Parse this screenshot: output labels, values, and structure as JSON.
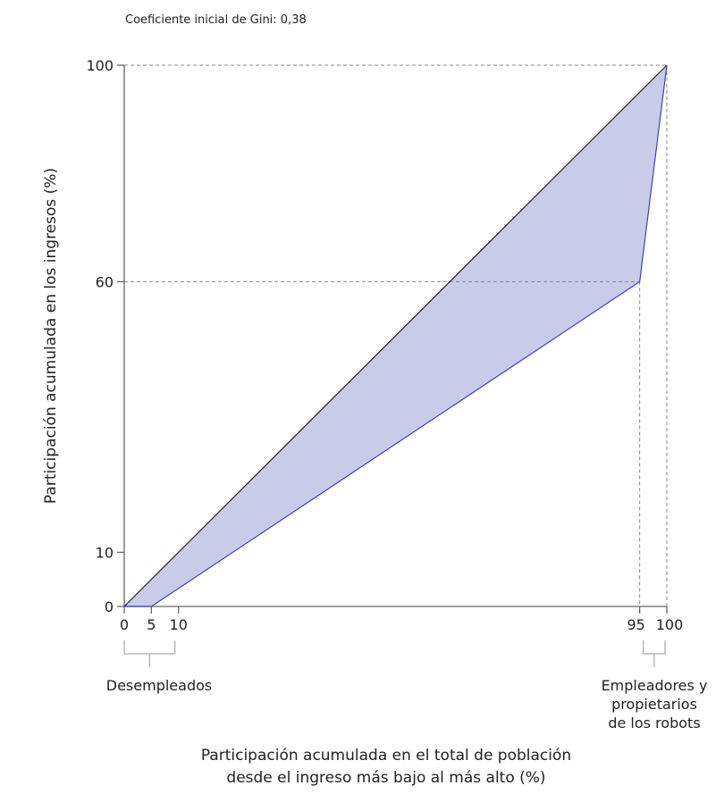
{
  "chart_data": {
    "type": "area",
    "title": "Coeficiente inicial de Gini: 0,38",
    "xlabel": [
      "Participación acumulada en el total de población",
      "desde el ingreso más bajo al más alto (%)"
    ],
    "ylabel": "Participación acumulada en los ingresos (%)",
    "xlim": [
      0,
      100
    ],
    "ylim": [
      0,
      100
    ],
    "x_ticks": [
      0,
      5,
      10,
      95,
      100
    ],
    "y_ticks": [
      0,
      10,
      60,
      100
    ],
    "grid": false,
    "series": [
      {
        "role": "equality-line",
        "x": [
          0,
          100
        ],
        "y": [
          0,
          100
        ],
        "color": "#222222"
      },
      {
        "role": "lorenz-curve",
        "x": [
          0,
          5,
          95,
          100
        ],
        "y": [
          0,
          0,
          60,
          100
        ],
        "color": "#3a44b8",
        "fill": "#c9cce9"
      }
    ],
    "reference_lines": [
      {
        "orientation": "horizontal",
        "value": 100
      },
      {
        "orientation": "horizontal",
        "value": 60
      },
      {
        "orientation": "vertical",
        "value": 95
      },
      {
        "orientation": "vertical",
        "value": 100
      }
    ],
    "annotations": [
      {
        "text": [
          "Desempleados"
        ],
        "range": [
          0,
          10
        ]
      },
      {
        "text": [
          "Empleadores y",
          "propietarios",
          "de los robots"
        ],
        "range": [
          95,
          100
        ]
      }
    ]
  }
}
